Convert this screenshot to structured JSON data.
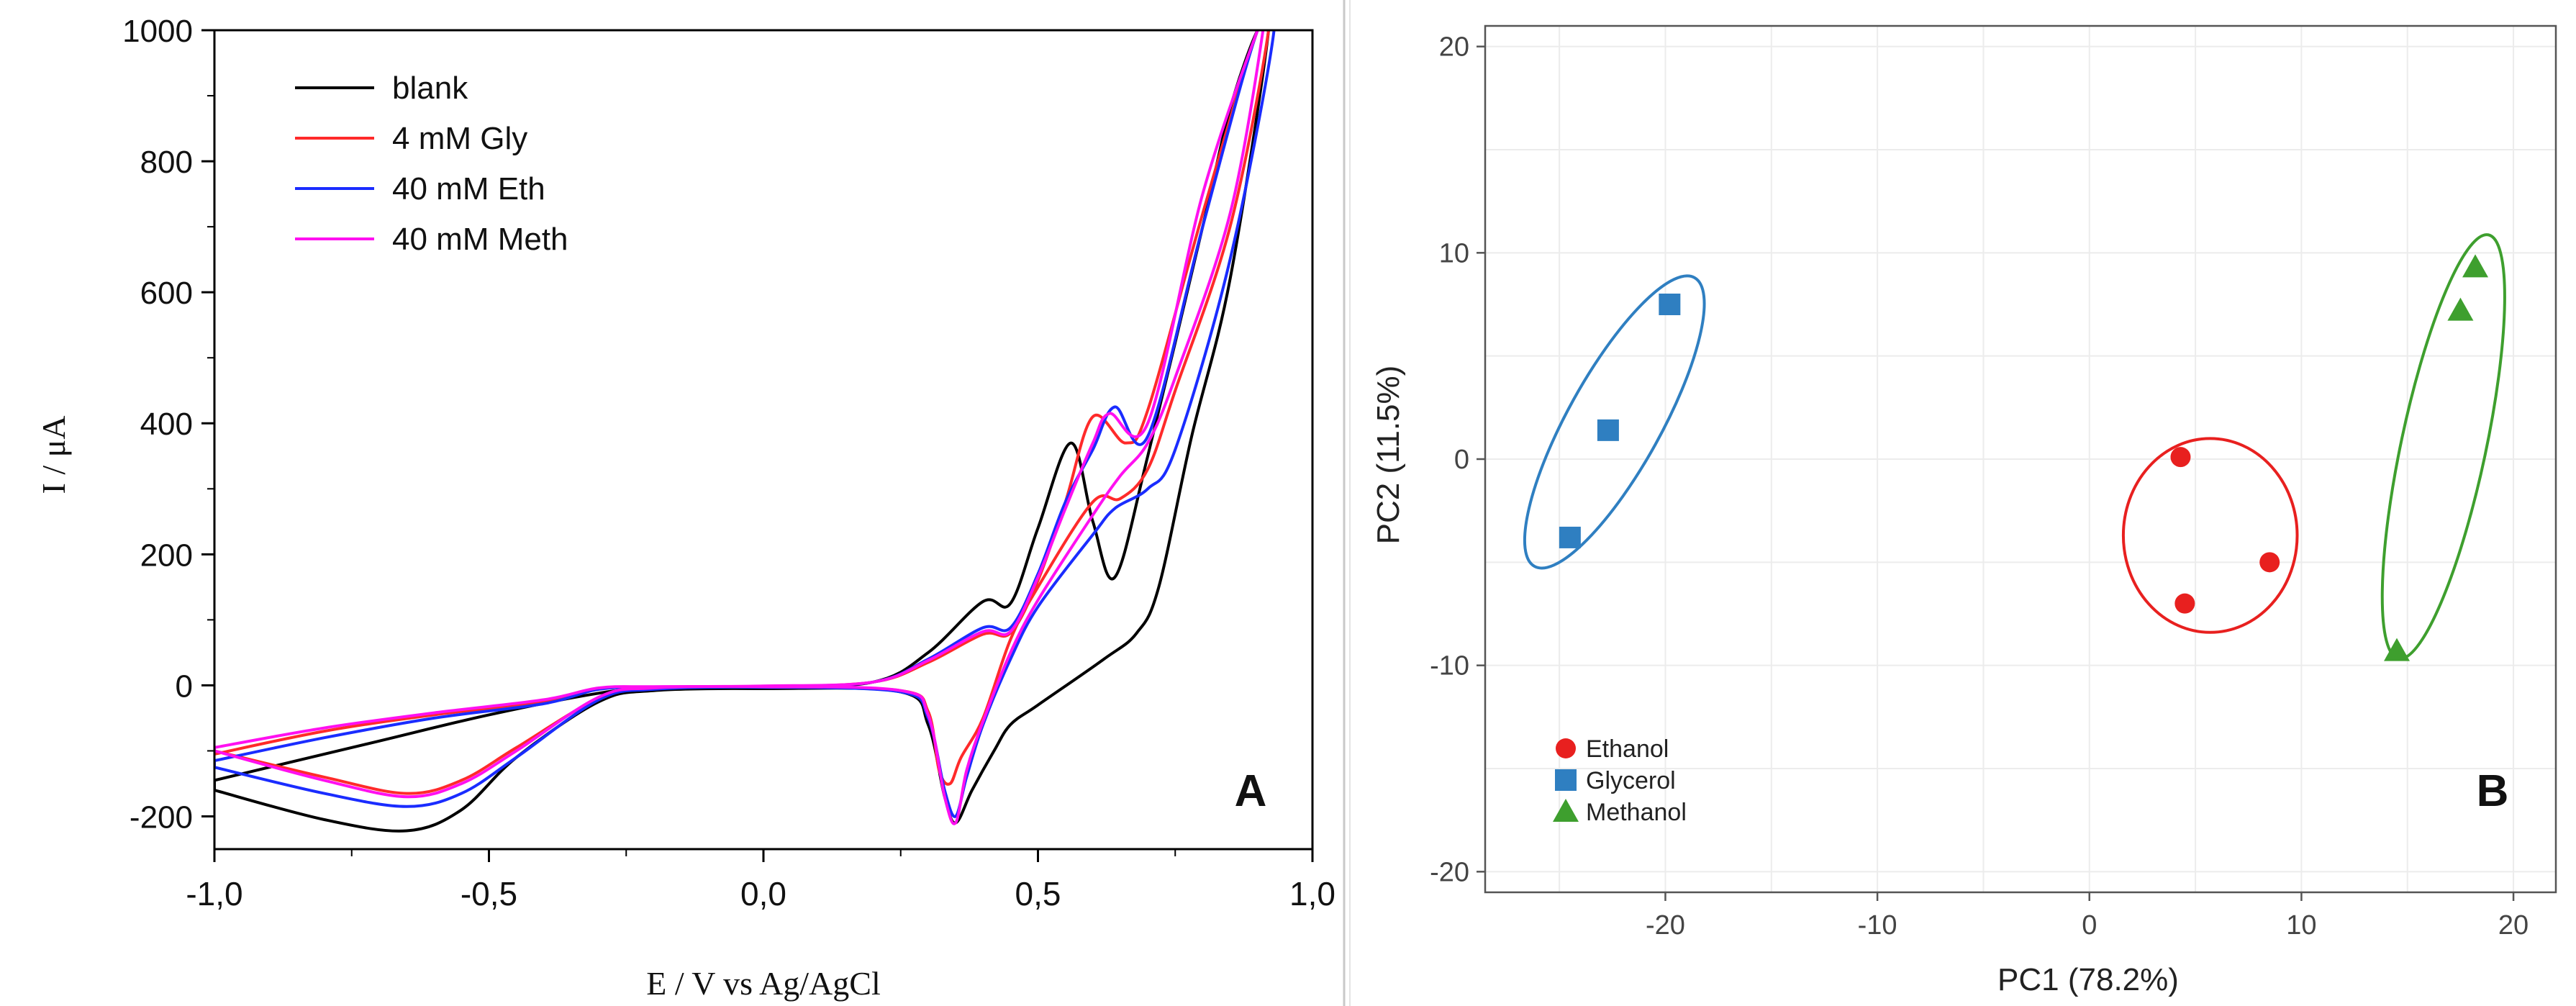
{
  "chart_data": [
    {
      "id": "A",
      "type": "line",
      "panel_label": "A",
      "xlabel": "E / V vs Ag/AgCl",
      "ylabel": "I / μA",
      "xlim": [
        -1.0,
        1.0
      ],
      "ylim": [
        -250,
        1000
      ],
      "x_ticks": [
        -1.0,
        -0.5,
        0.0,
        0.5,
        1.0
      ],
      "x_tick_labels": [
        "-1,0",
        "-0,5",
        "0,0",
        "0,5",
        "1,0"
      ],
      "y_ticks": [
        -200,
        0,
        200,
        400,
        600,
        800,
        1000
      ],
      "y_tick_labels": [
        "-200",
        "0",
        "200",
        "400",
        "600",
        "800",
        "1000"
      ],
      "legend_position": "top-left",
      "series": [
        {
          "name": "blank",
          "color": "#000000",
          "points": [
            [
              -1.0,
              -145
            ],
            [
              -0.9,
              -125
            ],
            [
              -0.7,
              -85
            ],
            [
              -0.5,
              -45
            ],
            [
              -0.3,
              -12
            ],
            [
              -0.2,
              -5
            ],
            [
              0.0,
              -3
            ],
            [
              0.2,
              5
            ],
            [
              0.3,
              50
            ],
            [
              0.4,
              128
            ],
            [
              0.45,
              125
            ],
            [
              0.5,
              240
            ],
            [
              0.56,
              370
            ],
            [
              0.6,
              250
            ],
            [
              0.64,
              165
            ],
            [
              0.7,
              350
            ],
            [
              0.8,
              700
            ],
            [
              0.85,
              880
            ],
            [
              0.9,
              1000
            ],
            [
              0.92,
              1000
            ],
            [
              0.85,
              620
            ],
            [
              0.78,
              380
            ],
            [
              0.72,
              150
            ],
            [
              0.68,
              80
            ],
            [
              0.62,
              40
            ],
            [
              0.5,
              -30
            ],
            [
              0.45,
              -60
            ],
            [
              0.42,
              -100
            ],
            [
              0.38,
              -160
            ],
            [
              0.35,
              -210
            ],
            [
              0.33,
              -170
            ],
            [
              0.3,
              -60
            ],
            [
              0.25,
              -10
            ],
            [
              0.0,
              -5
            ],
            [
              -0.2,
              -8
            ],
            [
              -0.3,
              -25
            ],
            [
              -0.45,
              -110
            ],
            [
              -0.55,
              -190
            ],
            [
              -0.65,
              -222
            ],
            [
              -0.8,
              -205
            ],
            [
              -1.0,
              -160
            ]
          ]
        },
        {
          "name": "4 mM Gly",
          "color": "#ff2a2a",
          "points": [
            [
              -1.0,
              -105
            ],
            [
              -0.8,
              -70
            ],
            [
              -0.6,
              -45
            ],
            [
              -0.4,
              -25
            ],
            [
              -0.3,
              -5
            ],
            [
              -0.2,
              -3
            ],
            [
              0.0,
              -2
            ],
            [
              0.2,
              5
            ],
            [
              0.3,
              35
            ],
            [
              0.4,
              78
            ],
            [
              0.45,
              80
            ],
            [
              0.5,
              160
            ],
            [
              0.55,
              280
            ],
            [
              0.6,
              410
            ],
            [
              0.66,
              370
            ],
            [
              0.7,
              420
            ],
            [
              0.8,
              720
            ],
            [
              0.9,
              1000
            ],
            [
              0.92,
              1000
            ],
            [
              0.85,
              700
            ],
            [
              0.75,
              450
            ],
            [
              0.7,
              330
            ],
            [
              0.65,
              285
            ],
            [
              0.6,
              280
            ],
            [
              0.5,
              150
            ],
            [
              0.45,
              70
            ],
            [
              0.4,
              -50
            ],
            [
              0.36,
              -110
            ],
            [
              0.34,
              -150
            ],
            [
              0.32,
              -130
            ],
            [
              0.3,
              -40
            ],
            [
              0.25,
              -8
            ],
            [
              0.0,
              -3
            ],
            [
              -0.2,
              -5
            ],
            [
              -0.3,
              -20
            ],
            [
              -0.45,
              -95
            ],
            [
              -0.55,
              -145
            ],
            [
              -0.65,
              -165
            ],
            [
              -0.8,
              -140
            ],
            [
              -1.0,
              -100
            ]
          ]
        },
        {
          "name": "40 mM Eth",
          "color": "#1a2cff",
          "points": [
            [
              -1.0,
              -115
            ],
            [
              -0.8,
              -80
            ],
            [
              -0.6,
              -50
            ],
            [
              -0.4,
              -28
            ],
            [
              -0.3,
              -6
            ],
            [
              -0.2,
              -3
            ],
            [
              0.0,
              -2
            ],
            [
              0.2,
              5
            ],
            [
              0.3,
              40
            ],
            [
              0.4,
              88
            ],
            [
              0.45,
              88
            ],
            [
              0.5,
              170
            ],
            [
              0.55,
              280
            ],
            [
              0.6,
              360
            ],
            [
              0.64,
              425
            ],
            [
              0.7,
              380
            ],
            [
              0.8,
              700
            ],
            [
              0.9,
              1000
            ],
            [
              0.93,
              1000
            ],
            [
              0.85,
              650
            ],
            [
              0.75,
              360
            ],
            [
              0.7,
              300
            ],
            [
              0.64,
              270
            ],
            [
              0.6,
              230
            ],
            [
              0.5,
              120
            ],
            [
              0.45,
              40
            ],
            [
              0.4,
              -60
            ],
            [
              0.37,
              -140
            ],
            [
              0.35,
              -200
            ],
            [
              0.33,
              -160
            ],
            [
              0.3,
              -50
            ],
            [
              0.25,
              -10
            ],
            [
              0.0,
              -3
            ],
            [
              -0.2,
              -6
            ],
            [
              -0.3,
              -22
            ],
            [
              -0.45,
              -110
            ],
            [
              -0.55,
              -165
            ],
            [
              -0.65,
              -185
            ],
            [
              -0.8,
              -165
            ],
            [
              -1.0,
              -125
            ]
          ]
        },
        {
          "name": "40 mM Meth",
          "color": "#ff10f0",
          "points": [
            [
              -1.0,
              -95
            ],
            [
              -0.8,
              -65
            ],
            [
              -0.6,
              -42
            ],
            [
              -0.4,
              -22
            ],
            [
              -0.3,
              -4
            ],
            [
              -0.2,
              -2
            ],
            [
              0.0,
              -1
            ],
            [
              0.2,
              5
            ],
            [
              0.3,
              38
            ],
            [
              0.4,
              82
            ],
            [
              0.45,
              82
            ],
            [
              0.5,
              165
            ],
            [
              0.55,
              270
            ],
            [
              0.6,
              370
            ],
            [
              0.63,
              415
            ],
            [
              0.7,
              400
            ],
            [
              0.8,
              750
            ],
            [
              0.9,
              1000
            ],
            [
              0.91,
              1000
            ],
            [
              0.85,
              720
            ],
            [
              0.75,
              470
            ],
            [
              0.7,
              370
            ],
            [
              0.65,
              320
            ],
            [
              0.6,
              260
            ],
            [
              0.5,
              130
            ],
            [
              0.45,
              50
            ],
            [
              0.4,
              -55
            ],
            [
              0.37,
              -130
            ],
            [
              0.35,
              -210
            ],
            [
              0.33,
              -170
            ],
            [
              0.3,
              -45
            ],
            [
              0.25,
              -8
            ],
            [
              0.0,
              -2
            ],
            [
              -0.2,
              -4
            ],
            [
              -0.3,
              -18
            ],
            [
              -0.45,
              -100
            ],
            [
              -0.55,
              -150
            ],
            [
              -0.65,
              -170
            ],
            [
              -0.8,
              -145
            ],
            [
              -1.0,
              -100
            ]
          ]
        }
      ]
    },
    {
      "id": "B",
      "type": "scatter",
      "panel_label": "B",
      "xlabel": "PC1 (78.2%)",
      "ylabel": "PC2 (11.5%)",
      "xlim": [
        -28.5,
        22
      ],
      "ylim": [
        -21,
        21
      ],
      "x_ticks": [
        -20,
        -10,
        0,
        10,
        20
      ],
      "x_tick_labels": [
        "-20",
        "-10",
        "0",
        "10",
        "20"
      ],
      "y_ticks": [
        -20,
        -10,
        0,
        10,
        20
      ],
      "y_tick_labels": [
        "-20",
        "-10",
        "0",
        "10",
        "20"
      ],
      "grid": true,
      "legend_position": "bottom-left",
      "series": [
        {
          "name": "Ethanol",
          "color": "#e8201f",
          "marker": "circle",
          "points": [
            [
              4.3,
              0.1
            ],
            [
              4.5,
              -7.0
            ],
            [
              8.5,
              -5.0
            ]
          ],
          "ellipse": {
            "cx": 5.7,
            "cy": -3.7,
            "rx": 4.1,
            "ry": 4.7,
            "angle": 0
          }
        },
        {
          "name": "Glycerol",
          "color": "#2f7fc1",
          "marker": "square",
          "points": [
            [
              -24.5,
              -3.8
            ],
            [
              -22.7,
              1.4
            ],
            [
              -19.8,
              7.5
            ]
          ],
          "ellipse": {
            "cx": -22.4,
            "cy": 1.8,
            "rx": 2.2,
            "ry": 8.0,
            "angle": -29
          }
        },
        {
          "name": "Methanol",
          "color": "#3e9f2e",
          "marker": "triangle",
          "points": [
            [
              14.5,
              -9.3
            ],
            [
              17.5,
              7.2
            ],
            [
              18.2,
              9.3
            ]
          ],
          "ellipse": {
            "cx": 16.7,
            "cy": 0.6,
            "rx": 2.0,
            "ry": 10.5,
            "angle": -12
          }
        }
      ]
    }
  ]
}
